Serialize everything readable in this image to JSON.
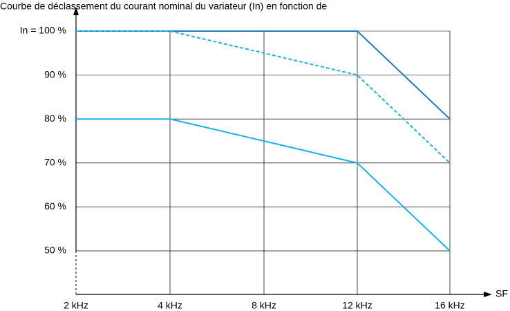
{
  "caption": "Courbe de déclassement du courant nominal du variateur (In) en fonction de",
  "chart_data": {
    "type": "line",
    "title": "",
    "xlabel": "SF",
    "ylabel": "",
    "categories": [
      "2 kHz",
      "4 kHz",
      "8 kHz",
      "12 kHz",
      "16 kHz"
    ],
    "y_tick_labels": [
      "In = 100 %",
      "90 %",
      "80 %",
      "70 %",
      "60 %",
      "50 %"
    ],
    "y_tick_values": [
      100,
      90,
      80,
      70,
      60,
      50
    ],
    "ylim": [
      40,
      100
    ],
    "grid": true,
    "colors": {
      "dark_blue": "#1a7fb5",
      "light_blue": "#19b2e8",
      "grid_dark": "#444444",
      "grid_light": "#bdbdbd"
    },
    "series": [
      {
        "color": "#1a7fb5",
        "dash": "solid",
        "values": [
          100,
          100,
          100,
          100,
          80
        ]
      },
      {
        "color": "#19b2e8",
        "dash": "dashed",
        "values": [
          100,
          100,
          95,
          90,
          70
        ]
      },
      {
        "color": "#19b2e8",
        "dash": "solid",
        "values": [
          80,
          80,
          75,
          70,
          50
        ]
      }
    ]
  }
}
